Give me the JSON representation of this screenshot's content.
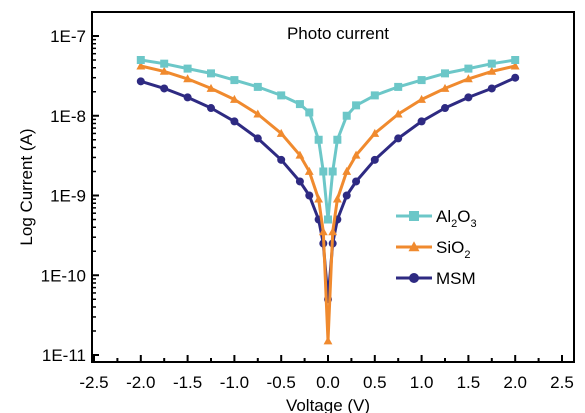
{
  "chart_data": {
    "type": "line",
    "title": "",
    "annotation": "Photo current",
    "xlabel": "Voltage (V)",
    "ylabel": "Log Current (A)",
    "xlim": [
      -2.5,
      2.5
    ],
    "ylim": [
      1e-11,
      1e-07
    ],
    "yscale": "log",
    "x_ticks": [
      -2.5,
      -2.0,
      -1.5,
      -1.0,
      -0.5,
      0.0,
      0.5,
      1.0,
      1.5,
      2.0,
      2.5
    ],
    "x_tick_labels": [
      "-2.5",
      "-2.0",
      "-1.5",
      "-1.0",
      "-0.5",
      "0.0",
      "0.5",
      "1.0",
      "1.5",
      "2.0",
      "2.5"
    ],
    "y_ticks": [
      1e-11,
      1e-10,
      1e-09,
      1e-08,
      1e-07
    ],
    "y_tick_labels": [
      "1E-11",
      "1E-10",
      "1E-9",
      "1E-8",
      "1E-7"
    ],
    "grid": false,
    "legend_position": "right",
    "series": [
      {
        "name": "Al2O3",
        "legend_parts": [
          [
            "Al",
            ""
          ],
          [
            "2",
            "sub"
          ],
          [
            "O",
            ""
          ],
          [
            "3",
            "sub"
          ]
        ],
        "color": "#6cc7c8",
        "marker": "square",
        "x": [
          -2.0,
          -1.75,
          -1.5,
          -1.25,
          -1.0,
          -0.75,
          -0.5,
          -0.3,
          -0.2,
          -0.1,
          -0.05,
          0.0,
          0.05,
          0.1,
          0.2,
          0.3,
          0.5,
          0.75,
          1.0,
          1.25,
          1.5,
          1.75,
          2.0
        ],
        "y": [
          5e-08,
          4.5e-08,
          3.9e-08,
          3.4e-08,
          2.8e-08,
          2.3e-08,
          1.8e-08,
          1.4e-08,
          1.1e-08,
          5e-09,
          2e-09,
          5e-10,
          2e-09,
          5e-09,
          1e-08,
          1.35e-08,
          1.8e-08,
          2.3e-08,
          2.8e-08,
          3.4e-08,
          3.9e-08,
          4.5e-08,
          5e-08
        ]
      },
      {
        "name": "SiO2",
        "legend_parts": [
          [
            "SiO",
            ""
          ],
          [
            "2",
            "sub"
          ]
        ],
        "color": "#f08a2e",
        "marker": "triangle",
        "x": [
          -2.0,
          -1.75,
          -1.5,
          -1.25,
          -1.0,
          -0.75,
          -0.5,
          -0.3,
          -0.2,
          -0.1,
          -0.05,
          0.0,
          0.05,
          0.1,
          0.2,
          0.3,
          0.5,
          0.75,
          1.0,
          1.25,
          1.5,
          1.75,
          2.0
        ],
        "y": [
          4.2e-08,
          3.6e-08,
          2.9e-08,
          2.2e-08,
          1.6e-08,
          1.05e-08,
          6e-09,
          3.2e-09,
          2e-09,
          9e-10,
          3.5e-10,
          1.5e-11,
          3.5e-10,
          9e-10,
          2e-09,
          3.2e-09,
          6e-09,
          1.05e-08,
          1.6e-08,
          2.2e-08,
          2.9e-08,
          3.6e-08,
          4.2e-08
        ]
      },
      {
        "name": "MSM",
        "legend_parts": [
          [
            "MSM",
            ""
          ]
        ],
        "color": "#2e2a82",
        "marker": "circle",
        "x": [
          -2.0,
          -1.75,
          -1.5,
          -1.25,
          -1.0,
          -0.75,
          -0.5,
          -0.3,
          -0.2,
          -0.1,
          -0.05,
          0.0,
          0.05,
          0.1,
          0.2,
          0.3,
          0.5,
          0.75,
          1.0,
          1.25,
          1.5,
          1.75,
          2.0
        ],
        "y": [
          2.7e-08,
          2.2e-08,
          1.7e-08,
          1.25e-08,
          8.5e-09,
          5.2e-09,
          2.8e-09,
          1.5e-09,
          1e-09,
          5e-10,
          2.5e-10,
          5e-11,
          2.5e-10,
          5e-10,
          1e-09,
          1.5e-09,
          2.8e-09,
          5.2e-09,
          8.5e-09,
          1.25e-08,
          1.7e-08,
          2.2e-08,
          3e-08
        ]
      }
    ]
  }
}
